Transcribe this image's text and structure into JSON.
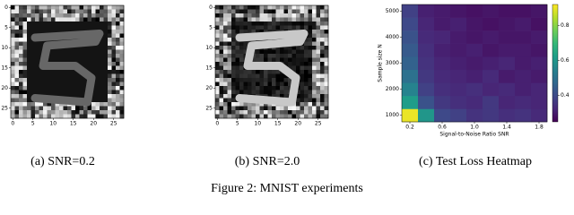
{
  "panels": [
    {
      "caption": "(a) SNR=0.2",
      "xticks": [
        0,
        5,
        10,
        15,
        20,
        25
      ],
      "yticks": [
        0,
        5,
        10,
        15,
        20,
        25
      ]
    },
    {
      "caption": "(b) SNR=2.0",
      "xticks": [
        0,
        5,
        10,
        15,
        20,
        25
      ],
      "yticks": [
        0,
        5,
        10,
        15,
        20,
        25
      ]
    }
  ],
  "heatmap": {
    "type": "heatmap",
    "caption": "(c) Test Loss Heatmap",
    "xlabel": "Signal-to-Noise Ratio SNR",
    "ylabel": "Sample size N",
    "x": [
      0.2,
      0.4,
      0.6,
      0.8,
      1.0,
      1.2,
      1.4,
      1.6,
      1.8
    ],
    "y": [
      1000,
      1500,
      2000,
      2500,
      3000,
      3500,
      4000,
      4500,
      5000
    ],
    "xlim": [
      0.1,
      1.9
    ],
    "ylim": [
      750,
      5250
    ],
    "xticks": [
      0.2,
      0.6,
      {
        "value": 1,
        "label": "1.0"
      },
      1.4,
      1.8
    ],
    "yticks": [
      1000,
      2000,
      3000,
      4000,
      5000
    ],
    "clim": [
      0.25,
      0.92
    ],
    "cticks": [
      0.4,
      0.6,
      0.8
    ],
    "values": [
      [
        0.9,
        0.6,
        0.4,
        0.38,
        0.35,
        0.36,
        0.34,
        0.35,
        0.33
      ],
      [
        0.62,
        0.42,
        0.36,
        0.34,
        0.33,
        0.36,
        0.32,
        0.33,
        0.32
      ],
      [
        0.55,
        0.38,
        0.34,
        0.33,
        0.34,
        0.32,
        0.33,
        0.31,
        0.32
      ],
      [
        0.5,
        0.36,
        0.33,
        0.32,
        0.31,
        0.33,
        0.3,
        0.31,
        0.3
      ],
      [
        0.46,
        0.35,
        0.32,
        0.31,
        0.3,
        0.31,
        0.32,
        0.3,
        0.31
      ],
      [
        0.44,
        0.34,
        0.31,
        0.3,
        0.31,
        0.29,
        0.3,
        0.3,
        0.29
      ],
      [
        0.42,
        0.33,
        0.32,
        0.3,
        0.29,
        0.3,
        0.29,
        0.29,
        0.3
      ],
      [
        0.4,
        0.32,
        0.3,
        0.31,
        0.29,
        0.28,
        0.29,
        0.3,
        0.28
      ],
      [
        0.38,
        0.31,
        0.3,
        0.29,
        0.28,
        0.29,
        0.28,
        0.28,
        0.29
      ]
    ]
  },
  "caption": "Figure 2: MNIST experiments"
}
